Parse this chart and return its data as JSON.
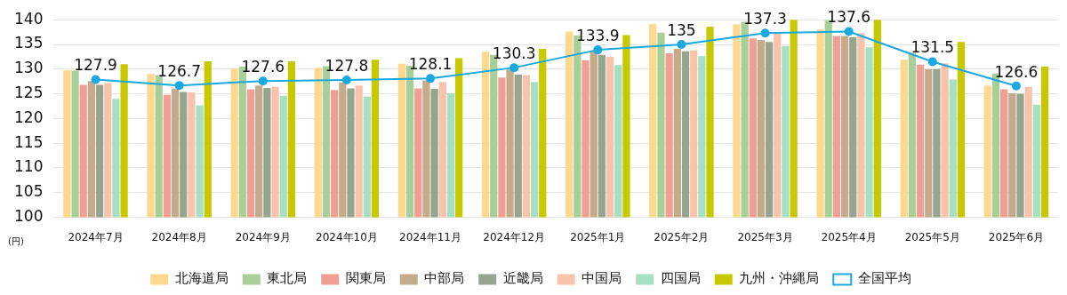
{
  "chart_data": {
    "type": "bar",
    "ylabel": "(円)",
    "categories": [
      "2024年7月",
      "2024年8月",
      "2024年9月",
      "2024年10月",
      "2024年11月",
      "2024年12月",
      "2025年1月",
      "2025年2月",
      "2025年3月",
      "2025年4月",
      "2025年5月",
      "2025年6月"
    ],
    "ylim": [
      100,
      140
    ],
    "yticks": [
      100,
      105,
      110,
      115,
      120,
      125,
      130,
      135,
      140
    ],
    "grid": "y",
    "legend": "bottom",
    "series": [
      {
        "name": "北海道局",
        "color": "#fdd88f",
        "values": [
          129.8,
          129.0,
          130.1,
          130.3,
          131.1,
          133.5,
          137.6,
          139.1,
          139.1,
          138.0,
          131.9,
          126.7
        ]
      },
      {
        "name": "東北局",
        "color": "#a9cf98",
        "values": [
          129.7,
          128.8,
          130.5,
          130.6,
          130.7,
          132.9,
          136.8,
          137.4,
          139.6,
          139.8,
          133.3,
          129.1
        ]
      },
      {
        "name": "関東局",
        "color": "#ef9f94",
        "values": [
          126.8,
          124.8,
          125.9,
          125.8,
          126.1,
          128.3,
          131.8,
          133.2,
          136.2,
          136.7,
          130.9,
          125.9
        ]
      },
      {
        "name": "中部局",
        "color": "#c5ab8b",
        "values": [
          127.6,
          126.1,
          126.7,
          127.3,
          127.7,
          129.9,
          133.7,
          134.1,
          135.9,
          136.7,
          130.0,
          125.1
        ]
      },
      {
        "name": "近畿局",
        "color": "#98a58e",
        "values": [
          126.8,
          125.4,
          126.2,
          126.1,
          126.0,
          128.9,
          132.9,
          133.6,
          135.5,
          136.5,
          130.0,
          125.0
        ]
      },
      {
        "name": "中国局",
        "color": "#f8c3ab",
        "values": [
          127.2,
          125.3,
          126.4,
          126.7,
          127.4,
          128.8,
          132.5,
          133.8,
          137.2,
          137.3,
          131.2,
          126.4
        ]
      },
      {
        "name": "四国局",
        "color": "#a7dfc3",
        "values": [
          124.0,
          122.7,
          124.6,
          124.5,
          125.1,
          127.4,
          130.8,
          132.6,
          134.7,
          134.4,
          127.9,
          122.8
        ]
      },
      {
        "name": "九州・沖縄局",
        "color": "#c8c800",
        "values": [
          131.0,
          131.6,
          131.6,
          131.9,
          132.2,
          134.1,
          136.9,
          138.6,
          140.0,
          140.0,
          135.5,
          130.5
        ]
      },
      {
        "name": "全国平均",
        "type": "line",
        "color": "#1aa8e0",
        "marker": "circle",
        "data_labels": true,
        "values": [
          127.9,
          126.7,
          127.6,
          127.8,
          128.1,
          130.3,
          133.9,
          135,
          137.3,
          137.6,
          131.5,
          126.6
        ]
      }
    ]
  }
}
